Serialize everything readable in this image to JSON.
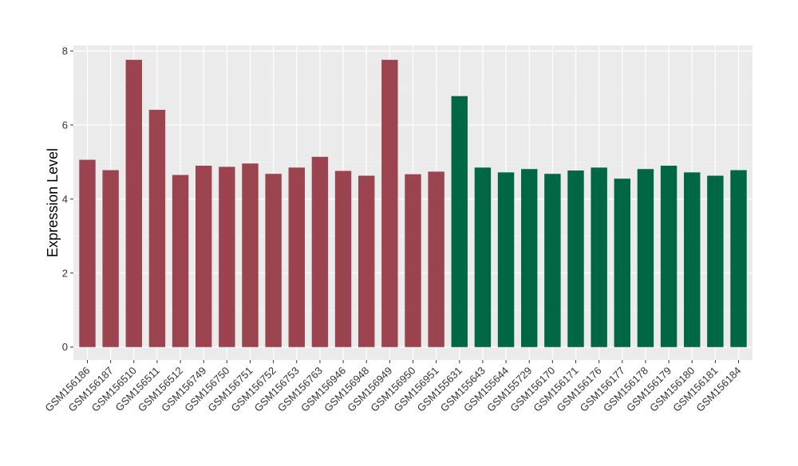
{
  "chart_data": {
    "type": "bar",
    "ylabel": "Expression Level",
    "xlabel": "",
    "ylim": [
      -0.35,
      8.15
    ],
    "yticks": [
      0,
      2,
      4,
      6,
      8
    ],
    "grid": true,
    "background": "#EBEBEB",
    "categories": [
      "GSM156186",
      "GSM156187",
      "GSM156510",
      "GSM156511",
      "GSM156512",
      "GSM156749",
      "GSM156750",
      "GSM156751",
      "GSM156752",
      "GSM156753",
      "GSM156763",
      "GSM156946",
      "GSM156948",
      "GSM156949",
      "GSM156950",
      "GSM156951",
      "GSM155631",
      "GSM155643",
      "GSM155644",
      "GSM155729",
      "GSM156170",
      "GSM156171",
      "GSM156176",
      "GSM156177",
      "GSM156178",
      "GSM156179",
      "GSM156180",
      "GSM156181",
      "GSM156184"
    ],
    "values": [
      5.06,
      4.78,
      7.76,
      6.41,
      4.65,
      4.9,
      4.87,
      4.96,
      4.68,
      4.85,
      5.14,
      4.76,
      4.63,
      7.76,
      4.67,
      4.74,
      6.78,
      4.85,
      4.72,
      4.81,
      4.68,
      4.77,
      4.85,
      4.55,
      4.81,
      4.9,
      4.72,
      4.63,
      4.78
    ],
    "group_colors": [
      "#9B4450",
      "#006744"
    ],
    "groups": [
      0,
      0,
      0,
      0,
      0,
      0,
      0,
      0,
      0,
      0,
      0,
      0,
      0,
      0,
      0,
      0,
      1,
      1,
      1,
      1,
      1,
      1,
      1,
      1,
      1,
      1,
      1,
      1,
      1
    ]
  }
}
